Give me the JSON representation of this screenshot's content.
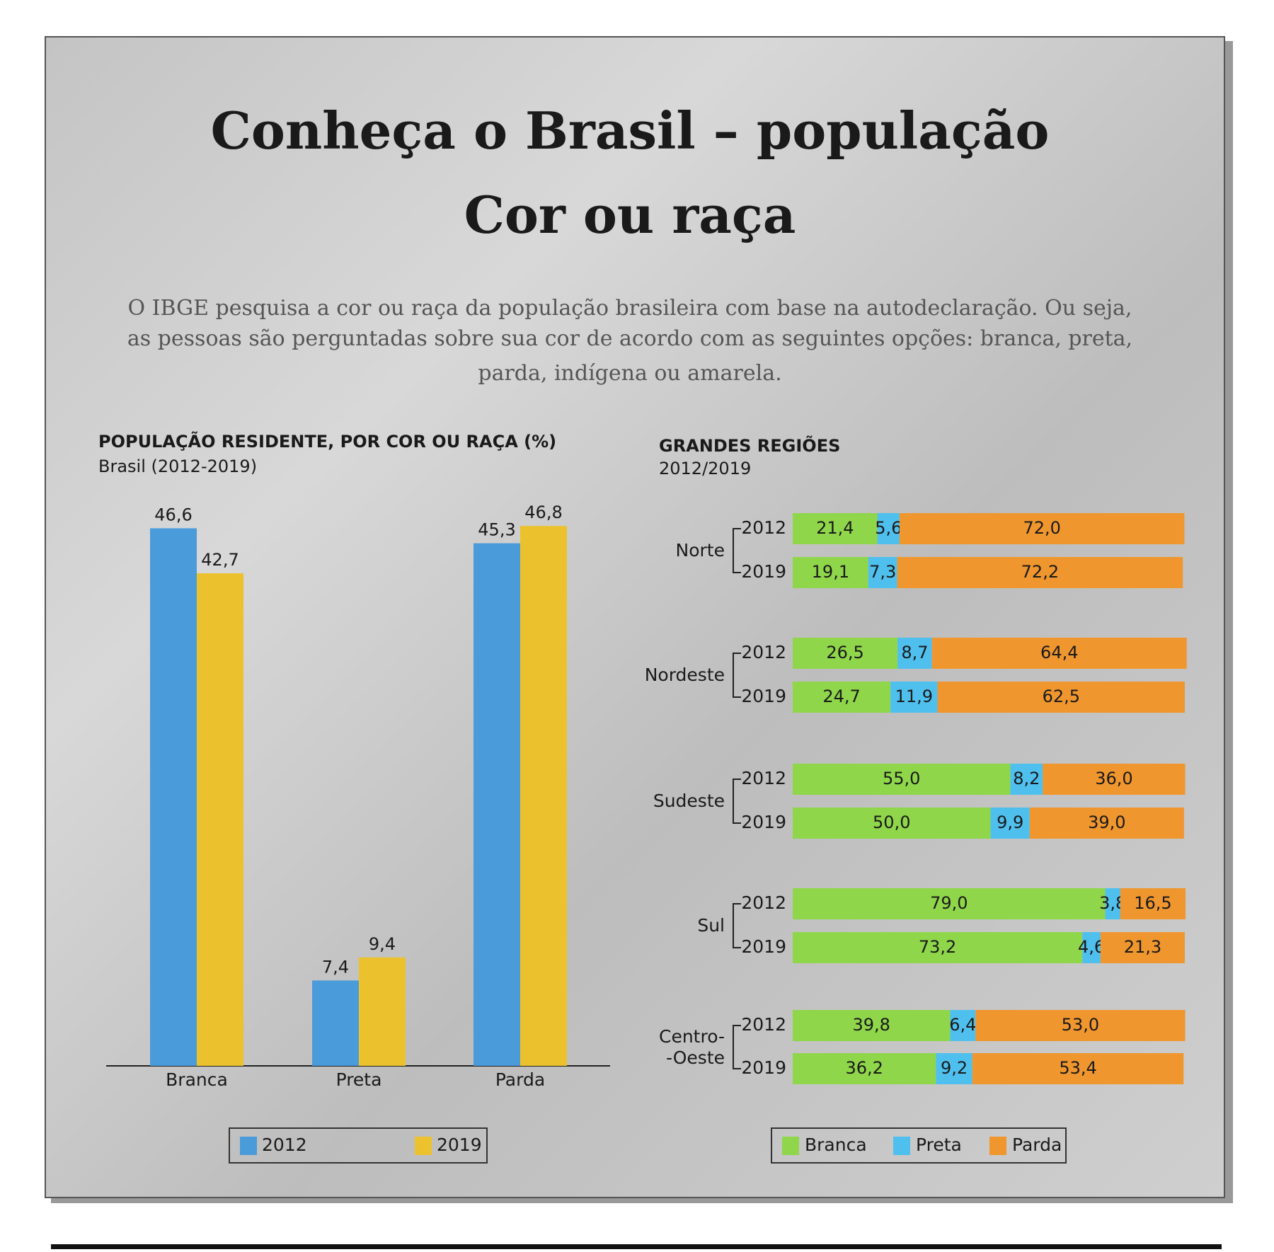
{
  "header": {
    "title": "Conheça o Brasil – população",
    "subtitle": "Cor ou raça",
    "description": [
      "O IBGE pesquisa a cor ou raça da população brasileira com base na autodeclaração. Ou seja,",
      "as pessoas são perguntadas sobre sua cor de acordo com as seguintes opções: branca, preta,",
      "parda, indígena ou amarela."
    ]
  },
  "chart_data": [
    {
      "type": "bar",
      "title": "POPULAÇÃO RESIDENTE, POR COR OU RAÇA (%)",
      "subtitle": "Brasil (2012-2019)",
      "categories": [
        "Branca",
        "Preta",
        "Parda"
      ],
      "series": [
        {
          "name": "2012",
          "color": "#4a9bd9",
          "values": [
            46.6,
            7.4,
            45.3
          ],
          "value_labels": [
            "46,6",
            "7,4",
            "45,3"
          ]
        },
        {
          "name": "2019",
          "color": "#ebc22e",
          "values": [
            42.7,
            9.4,
            46.8
          ],
          "value_labels": [
            "42,7",
            "9,4",
            "46,8"
          ]
        }
      ],
      "legend": "bottom"
    },
    {
      "type": "stacked-barh",
      "title": "GRANDES REGIÕES",
      "subtitle": "2012/2019",
      "groups": [
        "Norte",
        "Nordeste",
        "Sudeste",
        "Sul",
        "Centro-\n-Oeste"
      ],
      "categories": [
        "2012",
        "2019",
        "2012",
        "2019",
        "2012",
        "2019",
        "2012",
        "2019",
        "2012",
        "2019"
      ],
      "series": [
        {
          "name": "Branca",
          "color": "#8fd64a",
          "values": [
            21.4,
            19.1,
            26.5,
            24.7,
            55.0,
            50.0,
            79.0,
            73.2,
            39.8,
            36.2
          ],
          "value_labels": [
            "21,4",
            "19,1",
            "26,5",
            "24,7",
            "55,0",
            "50,0",
            "79,0",
            "73,2",
            "39,8",
            "36,2"
          ]
        },
        {
          "name": "Preta",
          "color": "#4fc0ee",
          "values": [
            5.6,
            7.3,
            8.7,
            11.9,
            8.2,
            9.9,
            3.8,
            4.6,
            6.4,
            9.2
          ],
          "value_labels": [
            "5,6",
            "7,3",
            "8,7",
            "11,9",
            "8,2",
            "9,9",
            "3,8",
            "4,6",
            "6,4",
            "9,2"
          ]
        },
        {
          "name": "Parda",
          "color": "#f0962e",
          "values": [
            72.0,
            72.2,
            64.4,
            62.5,
            36.0,
            39.0,
            16.5,
            21.3,
            53.0,
            53.4
          ],
          "value_labels": [
            "72,0",
            "72,2",
            "64,4",
            "62,5",
            "36,0",
            "39,0",
            "16,5",
            "21,3",
            "53,0",
            "53,4"
          ]
        }
      ],
      "legend": "bottom"
    }
  ]
}
